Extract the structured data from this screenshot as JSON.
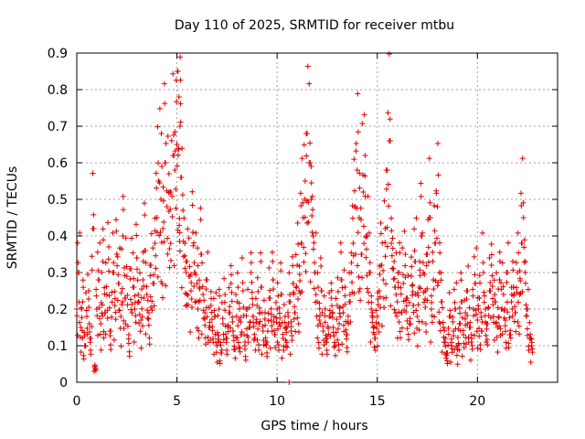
{
  "chart_data": {
    "type": "scatter",
    "title": "Day 110 of 2025, SRMTID for receiver mtbu",
    "xlabel": "GPS time / hours",
    "ylabel": "SRMTID / TECUs",
    "xlim": [
      0,
      24
    ],
    "ylim": [
      0,
      0.9
    ],
    "xticks": [
      0,
      5,
      10,
      15,
      20
    ],
    "xtick_labels": [
      "0",
      "5",
      "10",
      "15",
      "20"
    ],
    "yticks": [
      0,
      0.1,
      0.2,
      0.3,
      0.4,
      0.5,
      0.6,
      0.7,
      0.8,
      0.9
    ],
    "ytick_labels": [
      "0",
      "0.1",
      "0.2",
      "0.3",
      "0.4",
      "0.5",
      "0.6",
      "0.7",
      "0.8",
      "0.9"
    ],
    "grid": true,
    "marker": "+",
    "series": [
      {
        "name": "SRMTID",
        "color": "#e00000",
        "x": [
          0.0,
          0.1,
          0.2,
          0.3,
          0.4,
          0.5,
          0.6,
          0.7,
          0.8,
          0.9,
          1.0,
          1.1,
          1.2,
          1.3,
          1.4,
          1.5,
          1.6,
          1.7,
          1.8,
          1.9,
          2.0,
          2.1,
          2.2,
          2.3,
          2.4,
          2.5,
          2.6,
          2.7,
          2.8,
          2.9,
          3.0,
          3.1,
          3.2,
          3.3,
          3.4,
          3.5,
          3.6,
          3.7,
          3.8,
          3.9,
          4.0,
          4.1,
          4.2,
          4.3,
          4.4,
          4.5,
          4.6,
          4.7,
          4.8,
          4.9,
          5.0,
          5.05,
          5.1,
          5.15,
          5.2,
          5.3,
          5.4,
          5.5,
          5.6,
          5.7,
          5.8,
          5.9,
          6.0,
          6.1,
          6.2,
          6.3,
          6.4,
          6.5,
          6.6,
          6.7,
          6.8,
          6.9,
          7.0,
          7.1,
          7.2,
          7.3,
          7.4,
          7.5,
          7.6,
          7.7,
          7.8,
          7.9,
          8.0,
          8.1,
          8.2,
          8.3,
          8.4,
          8.5,
          8.6,
          8.7,
          8.8,
          8.9,
          9.0,
          9.1,
          9.2,
          9.3,
          9.4,
          9.5,
          9.6,
          9.7,
          9.8,
          9.9,
          10.0,
          10.1,
          10.2,
          10.3,
          10.4,
          10.5,
          10.6,
          10.7,
          10.8,
          10.9,
          11.0,
          11.1,
          11.2,
          11.3,
          11.4,
          11.5,
          11.6,
          11.7,
          11.8,
          11.9,
          12.0,
          12.1,
          12.2,
          12.3,
          12.4,
          12.5,
          12.6,
          12.7,
          12.8,
          12.9,
          13.0,
          13.1,
          13.2,
          13.3,
          13.4,
          13.5,
          13.6,
          13.7,
          13.8,
          13.9,
          14.0,
          14.1,
          14.2,
          14.3,
          14.4,
          14.5,
          14.6,
          14.7,
          14.8,
          14.9,
          15.0,
          15.1,
          15.2,
          15.3,
          15.4,
          15.5,
          15.6,
          15.7,
          15.8,
          15.9,
          16.0,
          16.1,
          16.2,
          16.3,
          16.4,
          16.5,
          16.6,
          16.7,
          16.8,
          16.9,
          17.0,
          17.1,
          17.2,
          17.3,
          17.4,
          17.5,
          17.6,
          17.7,
          17.8,
          17.9,
          18.0,
          18.1,
          18.2,
          18.3,
          18.4,
          18.5,
          18.6,
          18.7,
          18.8,
          18.9,
          19.0,
          19.1,
          19.2,
          19.3,
          19.4,
          19.5,
          19.6,
          19.7,
          19.8,
          19.9,
          20.0,
          20.1,
          20.2,
          20.3,
          20.4,
          20.5,
          20.6,
          20.7,
          20.8,
          20.9,
          21.0,
          21.1,
          21.2,
          21.3,
          21.4,
          21.5,
          21.6,
          21.7,
          21.8,
          21.9,
          22.0,
          22.1,
          22.2,
          22.3,
          22.4,
          22.5,
          22.6,
          22.7,
          0.2,
          0.3,
          0.15,
          0.22,
          0.1,
          0.18,
          0.25,
          0.12,
          0.42,
          0.04,
          0.2,
          0.28,
          0.16,
          0.33,
          0.19,
          0.24,
          0.37,
          0.14,
          0.3,
          0.21,
          0.35,
          0.27,
          0.18,
          0.4,
          0.23,
          0.29,
          0.13,
          0.31,
          0.26,
          0.2,
          0.34,
          0.22,
          0.17,
          0.28,
          0.36,
          0.24,
          0.19,
          0.32,
          0.27,
          0.38,
          0.45,
          0.55,
          0.5,
          0.42,
          0.6,
          0.48,
          0.57,
          0.52,
          0.62,
          0.58,
          0.65,
          0.85,
          0.78,
          0.7,
          0.56,
          0.47,
          0.38,
          0.33,
          0.29,
          0.25,
          0.41,
          0.3,
          0.27,
          0.22,
          0.35,
          0.24,
          0.19,
          0.28,
          0.15,
          0.21,
          0.12,
          0.18,
          0.1,
          0.2,
          0.08,
          0.16,
          0.24,
          0.12,
          0.19,
          0.27,
          0.14,
          0.09,
          0.22,
          0.17,
          0.13,
          0.25,
          0.11,
          0.2,
          0.15,
          0.3,
          0.18,
          0.12,
          0.21,
          0.16,
          0.26,
          0.14,
          0.19,
          0.11,
          0.23,
          0.17,
          0.28,
          0.13,
          0.2,
          0.16,
          0.24,
          0.12,
          0.18,
          0.15,
          0.22,
          0.14,
          0.27,
          0.19,
          0.32,
          0.25,
          0.38,
          0.45,
          0.55,
          0.68,
          0.6,
          0.5,
          0.4,
          0.3,
          0.22,
          0.17,
          0.25,
          0.14,
          0.2,
          0.12,
          0.18,
          0.23,
          0.15,
          0.1,
          0.21,
          0.16,
          0.28,
          0.19,
          0.26,
          0.13,
          0.22,
          0.3,
          0.38,
          0.48,
          0.58,
          0.45,
          0.35,
          0.52,
          0.62,
          0.4,
          0.3,
          0.2,
          0.15,
          0.12,
          0.18,
          0.25,
          0.32,
          0.28,
          0.42,
          0.58,
          0.66,
          0.38,
          0.31,
          0.26,
          0.22,
          0.3,
          0.19,
          0.27,
          0.35,
          0.23,
          0.16,
          0.29,
          0.21,
          0.33,
          0.18,
          0.26,
          0.4,
          0.3,
          0.25,
          0.35,
          0.45,
          0.2,
          0.28,
          0.38,
          0.48,
          0.3,
          0.22,
          0.15,
          0.12,
          0.08,
          0.18,
          0.1,
          0.14,
          0.2,
          0.09,
          0.16,
          0.22,
          0.13,
          0.19,
          0.25,
          0.15,
          0.11,
          0.2,
          0.27,
          0.17,
          0.23,
          0.14,
          0.3,
          0.2,
          0.16,
          0.25,
          0.32,
          0.18,
          0.22,
          0.15,
          0.28,
          0.2,
          0.24,
          0.17,
          0.3,
          0.13,
          0.22,
          0.26,
          0.19,
          0.3,
          0.24,
          0.38,
          0.45,
          0.33,
          0.2,
          0.12,
          0.1
        ]
      }
    ],
    "outlier_near_zero": {
      "x": 10.6,
      "y": 0.0
    }
  }
}
